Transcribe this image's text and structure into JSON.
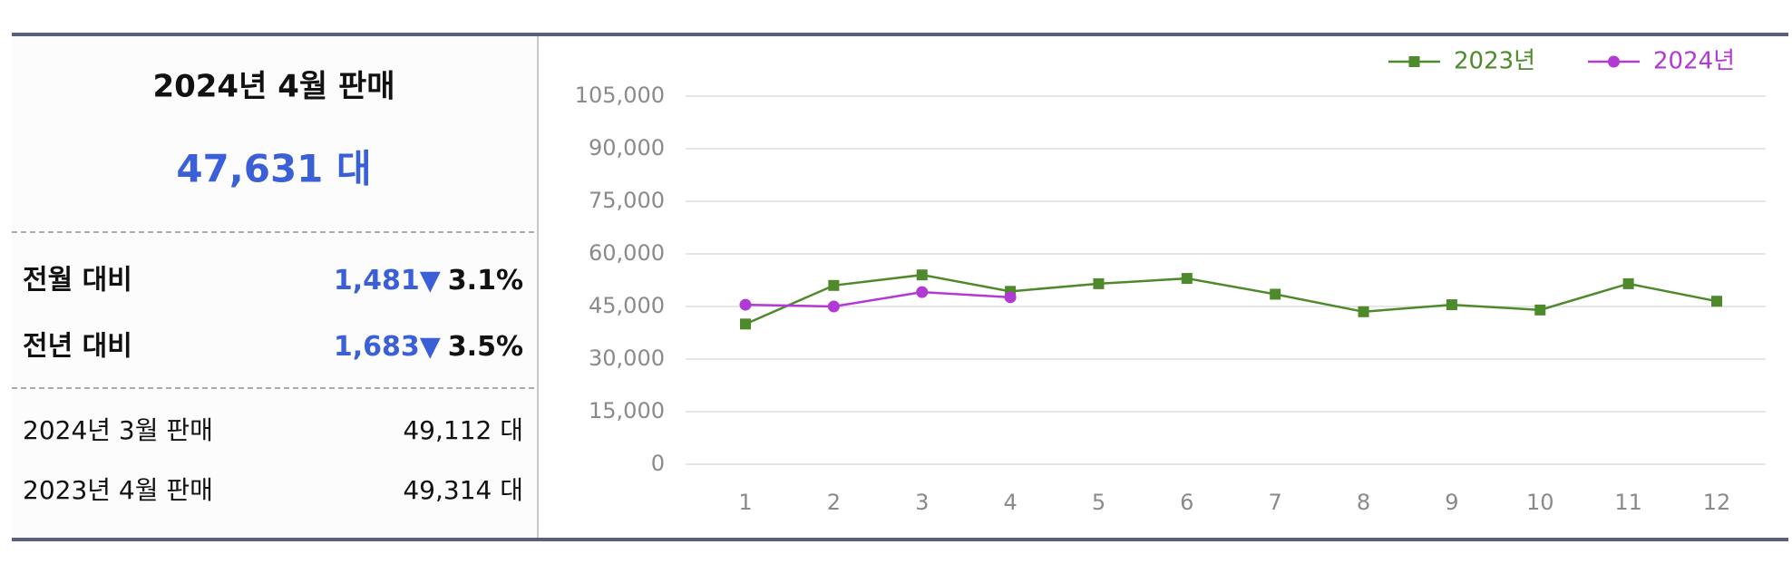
{
  "summary": {
    "title": "2024년 4월 판매",
    "total": "47,631 대",
    "rows": [
      {
        "label": "전월 대비",
        "diff": "1,481▼",
        "rate": "3.1%"
      },
      {
        "label": "전년 대비",
        "diff": "1,683▼",
        "rate": "3.5%"
      }
    ],
    "details": [
      {
        "label": "2024년 3월 판매",
        "value": "49,112 대"
      },
      {
        "label": "2023년 4월 판매",
        "value": "49,314 대"
      }
    ]
  },
  "chart_data": {
    "type": "line",
    "categories": [
      "1",
      "2",
      "3",
      "4",
      "5",
      "6",
      "7",
      "8",
      "9",
      "10",
      "11",
      "12"
    ],
    "series": [
      {
        "name": "2023년",
        "color": "#4e8a2c",
        "marker": "square",
        "values": [
          40000,
          51000,
          54000,
          49314,
          51500,
          53000,
          48500,
          43500,
          45500,
          44000,
          51500,
          46500
        ]
      },
      {
        "name": "2024년",
        "color": "#b23ad4",
        "marker": "circle",
        "values": [
          45500,
          45000,
          49112,
          47631,
          null,
          null,
          null,
          null,
          null,
          null,
          null,
          null
        ]
      }
    ],
    "ylim": [
      0,
      105000
    ],
    "yticks": [
      0,
      {
        "value": 15000,
        "label": "15,000"
      },
      {
        "value": 30000,
        "label": "30,000"
      },
      {
        "value": 45000,
        "label": "45,000"
      },
      {
        "value": 60000,
        "label": "60,000"
      },
      {
        "value": 75000,
        "label": "75,000"
      },
      {
        "value": 90000,
        "label": "90,000"
      },
      {
        "value": 105000,
        "label": "105,000"
      }
    ],
    "grid": true,
    "legend": "top-right"
  }
}
